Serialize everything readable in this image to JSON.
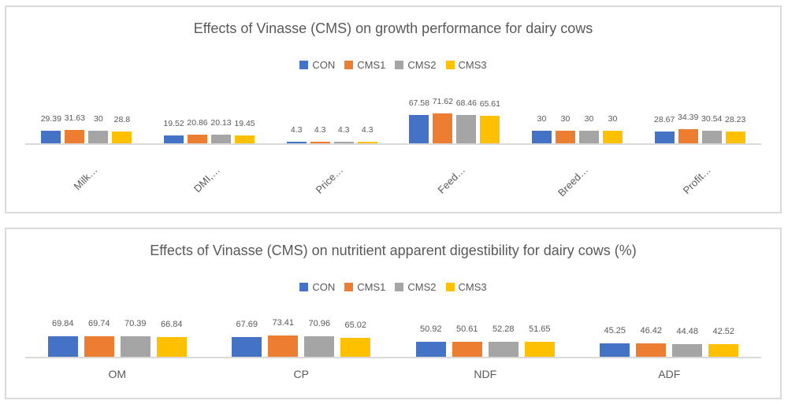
{
  "page": {
    "background": "#ffffff",
    "panel_border_color": "#d9d9d9",
    "text_color": "#595959"
  },
  "chart_data": [
    {
      "type": "bar",
      "title": "Effects of Vinasse (CMS) on growth performance for dairy cows",
      "categories": [
        "Milk…",
        "DMI,…",
        "Price…",
        "Feed…",
        "Breed…",
        "Profit…"
      ],
      "series": [
        {
          "name": "CON",
          "color": "#4472C4",
          "values": [
            29.39,
            19.52,
            4.3,
            67.58,
            30,
            28.67
          ]
        },
        {
          "name": "CMS1",
          "color": "#ED7D31",
          "values": [
            31.63,
            20.86,
            4.3,
            71.62,
            30,
            34.39
          ]
        },
        {
          "name": "CMS2",
          "color": "#A5A5A5",
          "values": [
            30,
            20.13,
            4.3,
            68.46,
            30,
            30.54
          ]
        },
        {
          "name": "CMS3",
          "color": "#FFC000",
          "values": [
            28.8,
            19.45,
            4.3,
            65.61,
            30,
            28.23
          ]
        }
      ],
      "legend_position": "top",
      "data_labels": true,
      "grid": false,
      "y_axis_visible": false,
      "x_labels_rotated": true
    },
    {
      "type": "bar",
      "title": "Effects of Vinasse (CMS) on nutritient apparent digestibility for dairy cows (%)",
      "categories": [
        "OM",
        "CP",
        "NDF",
        "ADF"
      ],
      "series": [
        {
          "name": "CON",
          "color": "#4472C4",
          "values": [
            69.84,
            67.69,
            50.92,
            45.25
          ]
        },
        {
          "name": "CMS1",
          "color": "#ED7D31",
          "values": [
            69.74,
            73.41,
            50.61,
            46.42
          ]
        },
        {
          "name": "CMS2",
          "color": "#A5A5A5",
          "values": [
            70.39,
            70.96,
            52.28,
            44.48
          ]
        },
        {
          "name": "CMS3",
          "color": "#FFC000",
          "values": [
            66.84,
            65.02,
            51.65,
            42.52
          ]
        }
      ],
      "legend_position": "top",
      "data_labels": true,
      "grid": false,
      "y_axis_visible": false,
      "x_labels_rotated": false
    }
  ]
}
